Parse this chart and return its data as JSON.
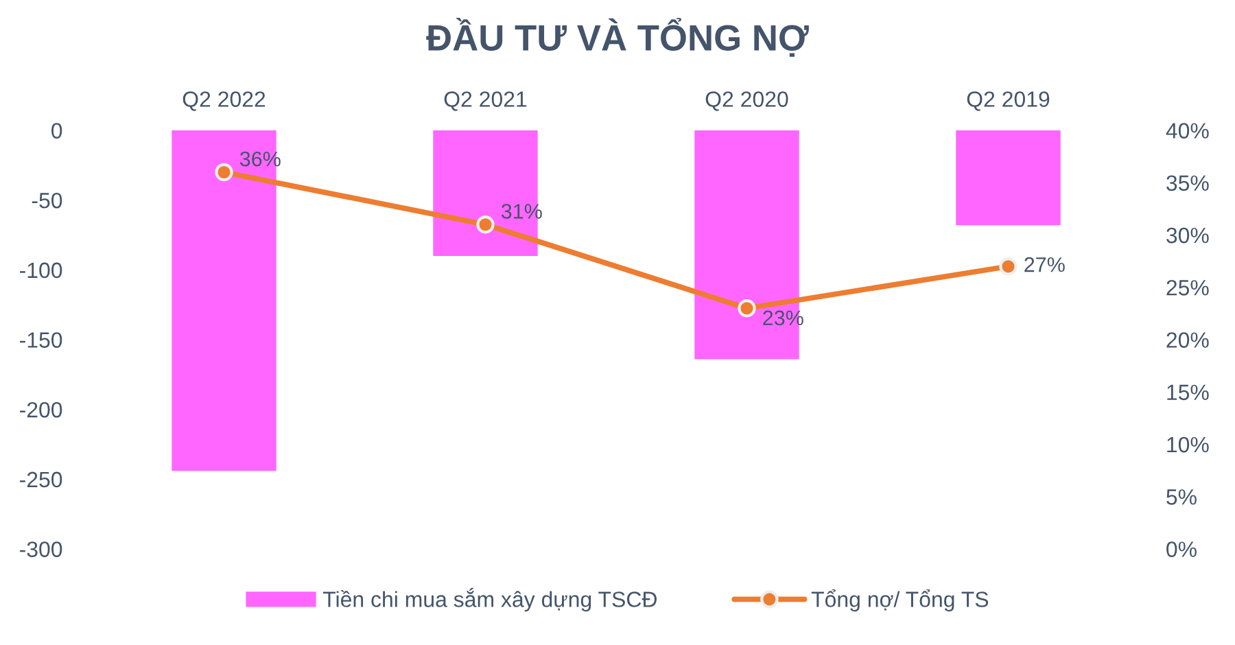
{
  "chart_data": {
    "type": "bar",
    "title": "ĐẦU TƯ VÀ TỔNG NỢ",
    "categories": [
      "Q2 2022",
      "Q2 2021",
      "Q2 2020",
      "Q2 2019"
    ],
    "series": [
      {
        "name": "Tiền chi mua sắm xây dựng TSCĐ",
        "color": "#ff66ff",
        "values": [
          -244,
          -90,
          -164,
          -68
        ]
      },
      {
        "name": "Tổng nợ/ Tổng TS",
        "type": "line",
        "axis": "y2",
        "color": "#ed7d31",
        "marker": "circle",
        "values": [
          36,
          31,
          23,
          27
        ],
        "value_labels": [
          "36%",
          "31%",
          "23%",
          "27%"
        ]
      }
    ],
    "ylim": [
      -300,
      0
    ],
    "yticks": [
      0,
      -50,
      -100,
      -150,
      -200,
      -250,
      -300
    ],
    "y2lim": [
      0,
      40
    ],
    "y2ticks": [
      {
        "value": 0,
        "label": "0%"
      },
      {
        "value": 5,
        "label": "5%"
      },
      {
        "value": 10,
        "label": "10%"
      },
      {
        "value": 15,
        "label": "15%"
      },
      {
        "value": 20,
        "label": "20%"
      },
      {
        "value": 25,
        "label": "25%"
      },
      {
        "value": 30,
        "label": "30%"
      },
      {
        "value": 35,
        "label": "35%"
      },
      {
        "value": 40,
        "label": "40%"
      }
    ],
    "legend": "bottom",
    "grid": false
  }
}
